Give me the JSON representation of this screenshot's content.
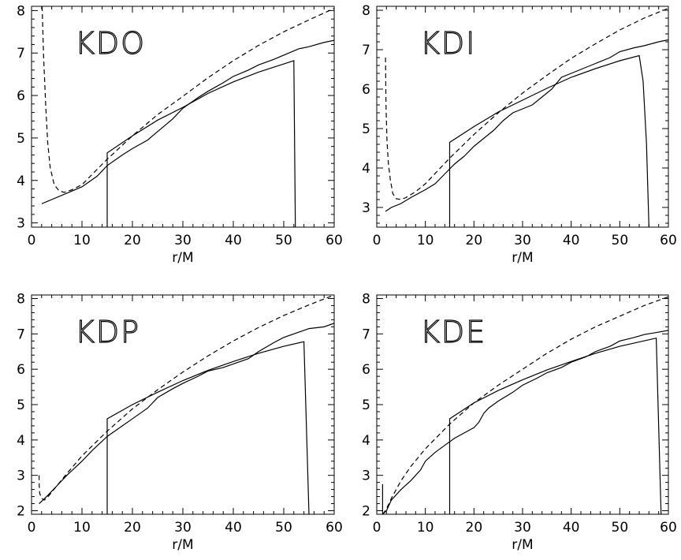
{
  "chart_data": [
    {
      "type": "line",
      "title": "KDO",
      "xlabel": "r/M",
      "ylabel": "",
      "xlim": [
        0,
        60
      ],
      "ylim": [
        2.9,
        8.1
      ],
      "xticks": [
        0,
        10,
        20,
        30,
        40,
        50,
        60
      ],
      "yticks": [
        3,
        4,
        5,
        6,
        7,
        8
      ],
      "series": [
        {
          "style": "dashed",
          "x": [
            2.1,
            2.4,
            2.8,
            3.2,
            3.7,
            4.5,
            5.5,
            6.5,
            8,
            10,
            15,
            20,
            25,
            30,
            35,
            40,
            45,
            50,
            55,
            60
          ],
          "y": [
            8.1,
            6.9,
            5.8,
            4.9,
            4.3,
            3.9,
            3.75,
            3.72,
            3.78,
            3.9,
            4.5,
            5.05,
            5.55,
            5.98,
            6.42,
            6.82,
            7.18,
            7.5,
            7.78,
            8.05
          ]
        },
        {
          "style": "solid",
          "x": [
            2,
            4,
            7,
            10,
            13,
            15,
            18,
            20,
            23,
            25,
            28,
            30,
            33,
            35,
            38,
            40,
            43,
            45,
            48,
            50,
            53,
            55,
            58,
            60
          ],
          "y": [
            3.45,
            3.55,
            3.7,
            3.85,
            4.1,
            4.35,
            4.6,
            4.75,
            4.95,
            5.15,
            5.45,
            5.7,
            5.95,
            6.1,
            6.3,
            6.45,
            6.6,
            6.72,
            6.85,
            6.95,
            7.1,
            7.15,
            7.25,
            7.3
          ]
        },
        {
          "style": "solid",
          "x": [
            15,
            15,
            20,
            25,
            30,
            35,
            40,
            45,
            52,
            52.3
          ],
          "y": [
            2.9,
            4.65,
            5.05,
            5.42,
            5.72,
            6.05,
            6.32,
            6.55,
            6.82,
            2.9
          ]
        }
      ]
    },
    {
      "type": "line",
      "title": "KDI",
      "xlabel": "r/M",
      "ylabel": "",
      "xlim": [
        0,
        60
      ],
      "ylim": [
        2.5,
        8.1
      ],
      "xticks": [
        0,
        10,
        20,
        30,
        40,
        50,
        60
      ],
      "yticks": [
        3,
        4,
        5,
        6,
        7,
        8
      ],
      "series": [
        {
          "style": "dashed",
          "x": [
            1.8,
            1.9,
            2.1,
            2.4,
            2.8,
            3.3,
            4.0,
            5,
            6,
            8,
            10,
            15,
            20,
            25,
            30,
            35,
            40,
            45,
            50,
            55,
            60
          ],
          "y": [
            6.8,
            5.6,
            4.7,
            4.1,
            3.7,
            3.35,
            3.22,
            3.2,
            3.25,
            3.4,
            3.6,
            4.25,
            4.85,
            5.4,
            5.9,
            6.35,
            6.78,
            7.15,
            7.5,
            7.8,
            8.05
          ]
        },
        {
          "style": "solid",
          "x": [
            1.8,
            3,
            5,
            7,
            10,
            12,
            14,
            16,
            18,
            20,
            22,
            24,
            26,
            28,
            30,
            32,
            34,
            36,
            38,
            40,
            42,
            45,
            48,
            50,
            53,
            55,
            58,
            60
          ],
          "y": [
            2.9,
            3.0,
            3.1,
            3.25,
            3.45,
            3.6,
            3.85,
            4.1,
            4.3,
            4.55,
            4.75,
            4.95,
            5.2,
            5.4,
            5.5,
            5.6,
            5.8,
            6.0,
            6.3,
            6.4,
            6.5,
            6.65,
            6.8,
            6.95,
            7.05,
            7.1,
            7.2,
            7.25
          ]
        },
        {
          "style": "solid",
          "x": [
            15,
            15,
            20,
            25,
            30,
            35,
            40,
            45,
            50,
            54,
            54.8,
            55.5,
            56
          ],
          "y": [
            2.5,
            4.65,
            5.05,
            5.42,
            5.72,
            6.02,
            6.3,
            6.52,
            6.72,
            6.85,
            6.2,
            4.6,
            2.5
          ]
        }
      ]
    },
    {
      "type": "line",
      "title": "KDP",
      "xlabel": "r/M",
      "ylabel": "",
      "xlim": [
        0,
        60
      ],
      "ylim": [
        1.9,
        8.1
      ],
      "xticks": [
        0,
        10,
        20,
        30,
        40,
        50,
        60
      ],
      "yticks": [
        2,
        3,
        4,
        5,
        6,
        7,
        8
      ],
      "series": [
        {
          "style": "dashed",
          "x": [
            1.5,
            1.5,
            1.6,
            2.0,
            2.5,
            3,
            5,
            7,
            10,
            15,
            20,
            25,
            30,
            35,
            40,
            45,
            50,
            55,
            60
          ],
          "y": [
            3.0,
            2.8,
            2.5,
            2.35,
            2.3,
            2.35,
            2.7,
            3.05,
            3.55,
            4.25,
            4.88,
            5.42,
            5.92,
            6.38,
            6.8,
            7.18,
            7.52,
            7.82,
            8.1
          ]
        },
        {
          "style": "solid",
          "x": [
            1.5,
            3,
            5,
            7,
            10,
            12,
            15,
            18,
            20,
            23,
            25,
            28,
            30,
            33,
            35,
            38,
            40,
            43,
            45,
            48,
            50,
            53,
            55,
            58,
            60
          ],
          "y": [
            2.2,
            2.4,
            2.7,
            3.0,
            3.4,
            3.7,
            4.1,
            4.4,
            4.6,
            4.9,
            5.2,
            5.45,
            5.6,
            5.8,
            5.95,
            6.05,
            6.15,
            6.3,
            6.5,
            6.75,
            6.9,
            7.05,
            7.15,
            7.2,
            7.3
          ]
        },
        {
          "style": "solid",
          "x": [
            15,
            15,
            20,
            25,
            30,
            35,
            40,
            45,
            50,
            54,
            55
          ],
          "y": [
            1.9,
            4.6,
            5.0,
            5.35,
            5.68,
            5.97,
            6.22,
            6.45,
            6.65,
            6.78,
            1.9
          ]
        }
      ]
    },
    {
      "type": "line",
      "title": "KDE",
      "xlabel": "r/M",
      "ylabel": "",
      "xlim": [
        0,
        60
      ],
      "ylim": [
        1.9,
        8.1
      ],
      "xticks": [
        0,
        10,
        20,
        30,
        40,
        50,
        60
      ],
      "yticks": [
        2,
        3,
        4,
        5,
        6,
        7,
        8
      ],
      "series": [
        {
          "style": "dashed",
          "x": [
            1.2,
            1.5,
            2,
            3,
            5,
            7,
            10,
            15,
            20,
            25,
            30,
            35,
            40,
            45,
            50,
            55,
            60
          ],
          "y": [
            1.9,
            1.95,
            2.05,
            2.35,
            2.85,
            3.25,
            3.75,
            4.45,
            5.05,
            5.55,
            6.0,
            6.45,
            6.85,
            7.2,
            7.5,
            7.8,
            8.05
          ]
        },
        {
          "style": "solid",
          "x": [
            1.2,
            2,
            3,
            5,
            7,
            9,
            10,
            12,
            14,
            16,
            18,
            20,
            21,
            22,
            23,
            25,
            28,
            30,
            33,
            35,
            38,
            40,
            43,
            45,
            48,
            50,
            53,
            55,
            58,
            60
          ],
          "y": [
            1.9,
            2.0,
            2.3,
            2.6,
            2.85,
            3.15,
            3.4,
            3.65,
            3.85,
            4.05,
            4.2,
            4.35,
            4.5,
            4.75,
            4.9,
            5.1,
            5.35,
            5.55,
            5.75,
            5.9,
            6.05,
            6.2,
            6.35,
            6.5,
            6.65,
            6.8,
            6.9,
            6.98,
            7.05,
            7.1
          ]
        },
        {
          "style": "solid",
          "x": [
            1.2,
            1.2,
            1.2
          ],
          "y": [
            1.9,
            2.75,
            1.9
          ]
        },
        {
          "style": "solid",
          "x": [
            15,
            15,
            20,
            25,
            30,
            35,
            40,
            45,
            50,
            57.5,
            58.5
          ],
          "y": [
            1.9,
            4.6,
            5.05,
            5.4,
            5.7,
            5.98,
            6.22,
            6.45,
            6.65,
            6.88,
            1.9
          ]
        }
      ]
    }
  ]
}
